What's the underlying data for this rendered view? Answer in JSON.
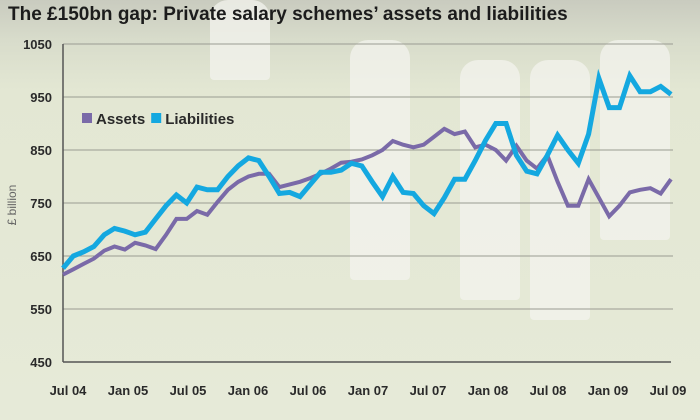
{
  "chart_data": {
    "type": "line",
    "title": "The £150bn gap: Private salary schemes’ assets and liabilities",
    "xlabel": "",
    "ylabel": "£ billion",
    "ylim": [
      450,
      1050
    ],
    "yticks": [
      "1050",
      "950",
      "850",
      "750",
      "650",
      "550",
      "450"
    ],
    "xticks": [
      "Jul 04",
      "Jan 05",
      "Jul 05",
      "Jan 06",
      "Jul 06",
      "Jan 07",
      "Jul 07",
      "Jan 08",
      "Jul 08",
      "Jan 09",
      "Jul 09"
    ],
    "grid": true,
    "legend_position": "top-left",
    "series": [
      {
        "name": "Assets",
        "color": "#7a6aa8",
        "values": [
          615,
          625,
          635,
          645,
          660,
          668,
          662,
          675,
          670,
          663,
          690,
          720,
          720,
          735,
          728,
          752,
          775,
          790,
          800,
          805,
          805,
          780,
          785,
          790,
          797,
          805,
          815,
          826,
          828,
          832,
          840,
          850,
          867,
          860,
          855,
          860,
          875,
          890,
          880,
          885,
          855,
          860,
          850,
          830,
          858,
          830,
          815,
          840,
          790,
          745,
          745,
          795,
          760,
          725,
          745,
          770,
          775,
          778,
          768,
          795
        ]
      },
      {
        "name": "Liabilities",
        "color": "#14a8e0",
        "values": [
          627,
          650,
          658,
          668,
          690,
          702,
          697,
          690,
          695,
          720,
          745,
          765,
          750,
          780,
          775,
          775,
          800,
          820,
          835,
          830,
          800,
          768,
          770,
          762,
          785,
          808,
          808,
          812,
          825,
          820,
          790,
          762,
          800,
          770,
          768,
          745,
          730,
          760,
          795,
          795,
          830,
          868,
          900,
          900,
          840,
          810,
          805,
          840,
          878,
          850,
          825,
          880,
          985,
          930,
          930,
          990,
          960,
          960,
          970,
          955
        ]
      }
    ]
  }
}
